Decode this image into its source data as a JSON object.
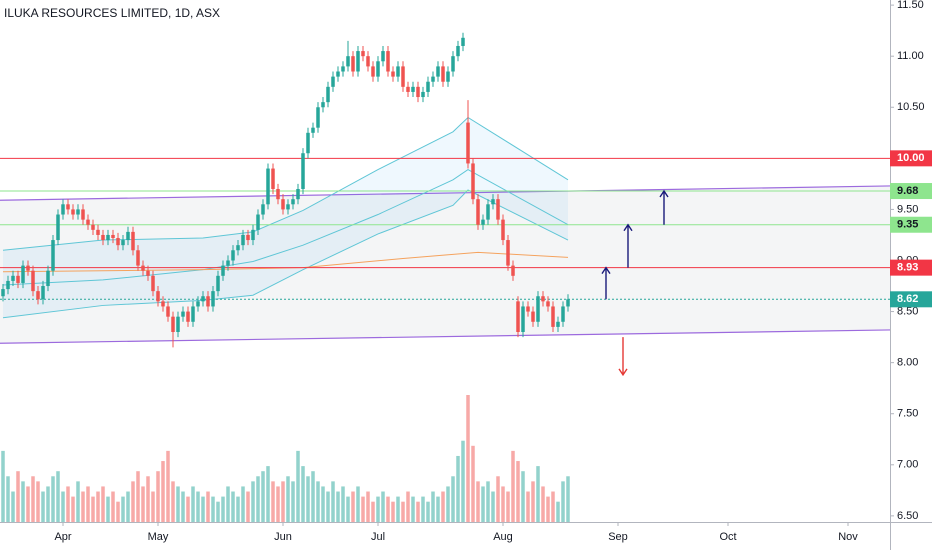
{
  "chart_data": {
    "type": "candlestick",
    "title": "ILUKA RESOURCES LIMITED, 1D, ASX",
    "xlim": [
      -0.6,
      177.4
    ],
    "xticks": [
      {
        "value": 12,
        "label": "Apr"
      },
      {
        "value": 31,
        "label": "May"
      },
      {
        "value": 56,
        "label": "Jun"
      },
      {
        "value": 75,
        "label": "Jul"
      },
      {
        "value": 100,
        "label": "Aug"
      },
      {
        "value": 123,
        "label": "Sep"
      },
      {
        "value": 145,
        "label": "Oct"
      },
      {
        "value": 169,
        "label": "Nov"
      }
    ],
    "ylim": [
      6.44,
      11.55
    ],
    "yticks": [
      {
        "value": 6.5,
        "label": "6.50"
      },
      {
        "value": 7,
        "label": "7.00"
      },
      {
        "value": 7.5,
        "label": "7.50"
      },
      {
        "value": 8,
        "label": "8.00"
      },
      {
        "value": 8.5,
        "label": "8.50"
      },
      {
        "value": 9,
        "label": "9.00"
      },
      {
        "value": 9.5,
        "label": "9.50"
      },
      {
        "value": 10,
        "label": "10.00"
      },
      {
        "value": 10.5,
        "label": "10.50"
      },
      {
        "value": 11,
        "label": "11.00"
      },
      {
        "value": 11.5,
        "label": "11.50"
      }
    ],
    "up_color": "#26a69a",
    "down_color": "#ef5350",
    "open": [
      8.65,
      8.72,
      8.8,
      8.85,
      8.78,
      8.95,
      8.9,
      8.7,
      8.62,
      8.75,
      8.9,
      9.2,
      9.45,
      9.55,
      9.5,
      9.45,
      9.5,
      9.4,
      9.35,
      9.3,
      9.25,
      9.2,
      9.25,
      9.22,
      9.15,
      9.2,
      9.28,
      9.1,
      8.95,
      8.9,
      8.85,
      8.7,
      8.6,
      8.55,
      8.45,
      8.3,
      8.45,
      8.5,
      8.4,
      8.55,
      8.6,
      8.65,
      8.55,
      8.7,
      8.85,
      8.95,
      9.0,
      9.1,
      9.15,
      9.25,
      9.2,
      9.3,
      9.45,
      9.55,
      9.9,
      9.7,
      9.6,
      9.5,
      9.55,
      9.6,
      9.7,
      10.05,
      10.25,
      10.3,
      10.5,
      10.55,
      10.7,
      10.8,
      10.85,
      10.9,
      11.0,
      10.85,
      11.05,
      11.0,
      10.9,
      10.8,
      10.95,
      11.05,
      10.85,
      10.8,
      10.9,
      10.7,
      10.65,
      10.7,
      10.6,
      10.65,
      10.75,
      10.8,
      10.9,
      10.75,
      10.85,
      11.0,
      11.1,
      10.35,
      9.95,
      9.6,
      9.35,
      9.4,
      9.55,
      9.6,
      9.4,
      9.2,
      8.95,
      8.6,
      8.3,
      8.55,
      8.5,
      8.4,
      8.65,
      8.6,
      8.55,
      8.35,
      8.4,
      8.55
    ],
    "high": [
      8.77,
      8.85,
      8.9,
      8.9,
      9.0,
      9.0,
      8.95,
      8.75,
      8.8,
      8.95,
      9.25,
      9.5,
      9.6,
      9.6,
      9.55,
      9.55,
      9.55,
      9.45,
      9.4,
      9.35,
      9.3,
      9.3,
      9.3,
      9.27,
      9.25,
      9.33,
      9.33,
      9.15,
      9.0,
      8.95,
      8.9,
      8.75,
      8.65,
      8.6,
      8.5,
      8.5,
      8.55,
      8.55,
      8.6,
      8.65,
      8.7,
      8.7,
      8.75,
      8.9,
      9.0,
      9.05,
      9.15,
      9.2,
      9.3,
      9.3,
      9.35,
      9.5,
      9.6,
      9.95,
      9.95,
      9.75,
      9.65,
      9.6,
      9.65,
      9.75,
      10.1,
      10.3,
      10.35,
      10.55,
      10.6,
      10.75,
      10.85,
      10.9,
      10.95,
      11.15,
      11.05,
      11.1,
      11.1,
      11.05,
      10.95,
      11.0,
      11.1,
      11.1,
      10.9,
      10.95,
      10.95,
      10.75,
      10.75,
      10.75,
      10.7,
      10.8,
      10.85,
      10.95,
      10.95,
      10.9,
      11.05,
      11.15,
      11.23,
      10.57,
      10.0,
      9.65,
      9.45,
      9.6,
      9.65,
      9.65,
      9.45,
      9.25,
      9.0,
      8.65,
      8.6,
      8.6,
      8.55,
      8.7,
      8.7,
      8.65,
      8.6,
      8.45,
      8.6,
      8.67
    ],
    "low": [
      8.6,
      8.67,
      8.75,
      8.73,
      8.73,
      8.85,
      8.65,
      8.57,
      8.57,
      8.7,
      8.85,
      9.15,
      9.4,
      9.45,
      9.4,
      9.4,
      9.35,
      9.3,
      9.25,
      9.2,
      9.15,
      9.15,
      9.17,
      9.1,
      9.1,
      9.15,
      9.05,
      8.9,
      8.85,
      8.8,
      8.65,
      8.55,
      8.5,
      8.4,
      8.15,
      8.25,
      8.4,
      8.35,
      8.35,
      8.5,
      8.55,
      8.5,
      8.5,
      8.65,
      8.8,
      8.9,
      8.95,
      9.05,
      9.1,
      9.15,
      9.15,
      9.25,
      9.4,
      9.5,
      9.65,
      9.55,
      9.45,
      9.45,
      9.5,
      9.55,
      9.65,
      10.0,
      10.2,
      10.25,
      10.45,
      10.5,
      10.65,
      10.75,
      10.8,
      10.85,
      10.8,
      10.8,
      10.95,
      10.85,
      10.75,
      10.75,
      10.9,
      10.8,
      10.75,
      10.75,
      10.65,
      10.6,
      10.6,
      10.55,
      10.55,
      10.6,
      10.7,
      10.75,
      10.7,
      10.7,
      10.8,
      10.95,
      11.05,
      9.9,
      9.55,
      9.3,
      9.3,
      9.35,
      9.5,
      9.35,
      9.15,
      8.9,
      8.8,
      8.25,
      8.25,
      8.45,
      8.35,
      8.35,
      8.55,
      8.5,
      8.3,
      8.3,
      8.35,
      8.5
    ],
    "close": [
      8.72,
      8.8,
      8.85,
      8.78,
      8.95,
      8.9,
      8.7,
      8.62,
      8.75,
      8.9,
      9.2,
      9.45,
      9.55,
      9.5,
      9.45,
      9.5,
      9.4,
      9.35,
      9.3,
      9.25,
      9.2,
      9.25,
      9.22,
      9.15,
      9.2,
      9.28,
      9.1,
      8.95,
      8.9,
      8.85,
      8.7,
      8.6,
      8.55,
      8.45,
      8.3,
      8.45,
      8.5,
      8.4,
      8.55,
      8.6,
      8.65,
      8.55,
      8.7,
      8.85,
      8.95,
      9.0,
      9.1,
      9.15,
      9.25,
      9.2,
      9.3,
      9.45,
      9.55,
      9.9,
      9.7,
      9.6,
      9.5,
      9.55,
      9.6,
      9.7,
      10.05,
      10.25,
      10.3,
      10.5,
      10.55,
      10.7,
      10.8,
      10.85,
      10.9,
      11.0,
      10.85,
      11.05,
      11.0,
      10.9,
      10.8,
      10.95,
      11.05,
      10.85,
      10.8,
      10.9,
      10.7,
      10.65,
      10.7,
      10.6,
      10.65,
      10.75,
      10.8,
      10.9,
      10.75,
      10.85,
      11.0,
      11.1,
      11.18,
      9.95,
      9.6,
      9.35,
      9.4,
      9.55,
      9.6,
      9.4,
      9.2,
      8.95,
      8.85,
      8.3,
      8.55,
      8.5,
      8.4,
      8.65,
      8.6,
      8.55,
      8.35,
      8.4,
      8.55,
      8.62
    ],
    "volume": [
      1.4,
      0.9,
      0.6,
      1.0,
      0.8,
      0.7,
      0.9,
      0.8,
      0.6,
      0.7,
      0.9,
      1.0,
      0.6,
      0.7,
      0.5,
      0.8,
      0.6,
      0.7,
      0.5,
      0.6,
      0.7,
      0.5,
      0.6,
      0.4,
      0.5,
      0.6,
      0.8,
      1.0,
      0.7,
      0.9,
      0.6,
      1.0,
      1.2,
      1.4,
      0.8,
      0.7,
      0.6,
      0.5,
      0.7,
      0.6,
      0.5,
      0.6,
      0.5,
      0.4,
      0.5,
      0.7,
      0.6,
      0.5,
      0.7,
      0.6,
      0.8,
      0.9,
      1.0,
      1.1,
      0.8,
      0.7,
      0.8,
      0.9,
      0.8,
      1.4,
      1.1,
      0.9,
      1.0,
      0.8,
      0.7,
      0.6,
      0.8,
      0.6,
      0.7,
      0.5,
      0.6,
      0.7,
      0.5,
      0.6,
      0.4,
      0.5,
      0.6,
      0.5,
      0.4,
      0.5,
      0.4,
      0.6,
      0.5,
      0.4,
      0.5,
      0.4,
      0.6,
      0.5,
      0.6,
      0.7,
      0.9,
      1.3,
      1.6,
      2.5,
      1.5,
      0.8,
      0.7,
      0.8,
      0.6,
      0.9,
      0.7,
      0.6,
      1.4,
      1.2,
      1.0,
      0.6,
      0.8,
      1.1,
      0.7,
      0.5,
      0.6,
      0.4,
      0.8,
      0.9
    ],
    "overlays": [
      {
        "color": "#5fc6d6",
        "x": [
          0,
          20,
          40,
          50,
          60,
          75,
          90,
          93,
          113
        ],
        "values": [
          9.1,
          9.2,
          9.22,
          9.28,
          9.49,
          9.89,
          10.26,
          10.4,
          9.79
        ]
      },
      {
        "color": "#5fc6d6",
        "x": [
          0,
          20,
          40,
          50,
          60,
          75,
          90,
          93,
          113
        ],
        "values": [
          8.76,
          8.81,
          8.91,
          8.99,
          9.15,
          9.45,
          9.79,
          9.89,
          9.35
        ]
      },
      {
        "color": "#5fc6d6",
        "x": [
          0,
          20,
          40,
          50,
          60,
          75,
          90,
          93,
          113
        ],
        "values": [
          8.44,
          8.56,
          8.61,
          8.66,
          8.91,
          9.26,
          9.54,
          9.69,
          9.2
        ]
      },
      {
        "color": "#f5a25d",
        "x": [
          0,
          40,
          60,
          80,
          95,
          113
        ],
        "values": [
          8.89,
          8.91,
          8.93,
          9.02,
          9.08,
          9.03
        ]
      }
    ],
    "trend_lines": [
      {
        "color": "#9c6ade",
        "x": [
          -0.6,
          177.4
        ],
        "values": [
          9.59,
          9.73
        ]
      },
      {
        "color": "#9c6ade",
        "x": [
          -0.6,
          177.4
        ],
        "values": [
          8.19,
          8.32
        ]
      }
    ],
    "levels": [
      {
        "value": 10.0,
        "label": "10.00",
        "color": "#f23645",
        "text_color": "#ffffff"
      },
      {
        "value": 9.68,
        "label": "9.68",
        "color": "#8ee58e",
        "text_color": "#131722"
      },
      {
        "value": 9.35,
        "label": "9.35",
        "color": "#8ee58e",
        "text_color": "#131722"
      },
      {
        "value": 8.93,
        "label": "8.93",
        "color": "#f23645",
        "text_color": "#ffffff"
      },
      {
        "value": 8.62,
        "label": "8.62",
        "color": "#26a69a",
        "text_color": "#ffffff"
      }
    ],
    "arrows": [
      {
        "x": 120.6,
        "from": 8.62,
        "to": 8.93,
        "color": "#1a1a7a"
      },
      {
        "x": 125,
        "from": 8.93,
        "to": 9.35,
        "color": "#1a1a7a"
      },
      {
        "x": 132.2,
        "from": 9.35,
        "to": 9.68,
        "color": "#1a1a7a"
      },
      {
        "x": 124,
        "from": 8.25,
        "to": 7.88,
        "color": "#e53935"
      }
    ]
  }
}
